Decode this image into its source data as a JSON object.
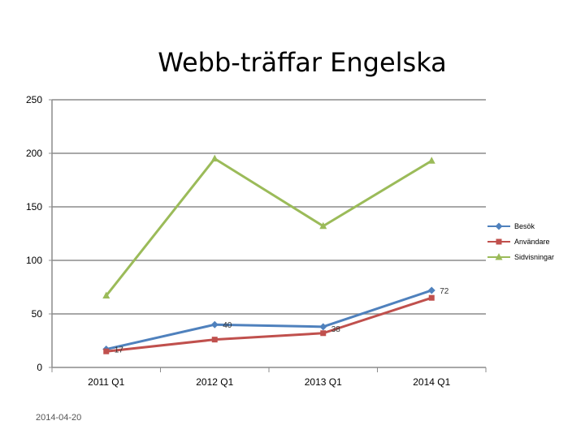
{
  "slide": {
    "date": "2014-04-20"
  },
  "chart_data": {
    "type": "line",
    "title": "Webb-träffar Engelska",
    "xlabel": "",
    "ylabel": "",
    "categories": [
      "2011 Q1",
      "2012 Q1",
      "2013 Q1",
      "2014 Q1"
    ],
    "ylim": [
      0,
      250
    ],
    "yticks": [
      0,
      50,
      100,
      150,
      200,
      250
    ],
    "grid": true,
    "legend": "right",
    "series": [
      {
        "name": "Besök",
        "values": [
          17,
          40,
          38,
          72
        ],
        "color": "#4F81BD",
        "marker": "diamond",
        "labels": [
          "17",
          "40",
          "38",
          "72"
        ]
      },
      {
        "name": "Användare",
        "values": [
          15,
          26,
          32,
          65
        ],
        "color": "#C0504D",
        "marker": "square",
        "labels": []
      },
      {
        "name": "Sidvisningar",
        "values": [
          67,
          195,
          132,
          193
        ],
        "color": "#9BBB59",
        "marker": "triangle",
        "labels": []
      }
    ]
  }
}
